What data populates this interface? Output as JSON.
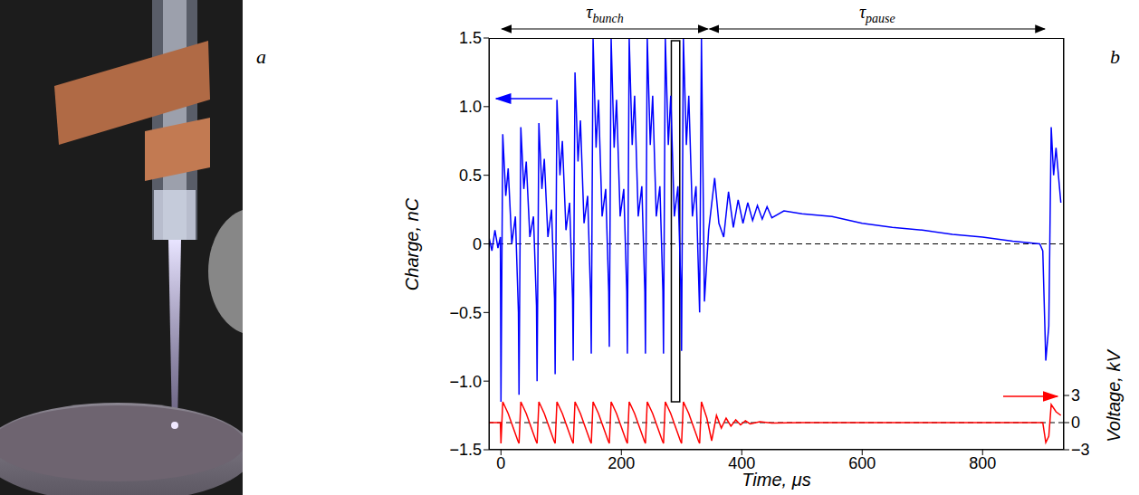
{
  "panel_labels": [
    "a",
    "b"
  ],
  "chart_data": {
    "type": "line",
    "xlabel": "Time, μs",
    "ylabel": "Charge, nC",
    "y2label": "Voltage, kV",
    "xlim": [
      -20,
      935
    ],
    "xticks": [
      0,
      200,
      400,
      600,
      800
    ],
    "ylim": [
      -1.5,
      1.5
    ],
    "yticks": [
      {
        "value": -1.5,
        "label": "−1.5"
      },
      {
        "value": -1,
        "label": "−1.0"
      },
      {
        "value": -0.5,
        "label": "−0.5"
      },
      0,
      0.5,
      {
        "value": 1,
        "label": "1.0"
      },
      1.5
    ],
    "y2lim": [
      -3,
      42.5
    ],
    "y2ticks": [
      {
        "value": -3,
        "label": "−3"
      },
      0,
      3
    ],
    "series": [
      {
        "color": "#0000ff",
        "x": [
          -20,
          -15,
          -10,
          -5,
          -1,
          0,
          3,
          8,
          12,
          18,
          24,
          29,
          30,
          33,
          38,
          42,
          48,
          54,
          59,
          60,
          63,
          68,
          72,
          78,
          84,
          89,
          90,
          93,
          98,
          102,
          108,
          114,
          119,
          120,
          123,
          128,
          132,
          138,
          144,
          149,
          150,
          153,
          158,
          162,
          168,
          174,
          179,
          180,
          183,
          188,
          192,
          198,
          204,
          209,
          210,
          213,
          218,
          222,
          228,
          234,
          239,
          240,
          243,
          248,
          252,
          258,
          264,
          269,
          270,
          273,
          278,
          282,
          288,
          294,
          299,
          300,
          303,
          308,
          312,
          318,
          324,
          329,
          330,
          333,
          338,
          345,
          355,
          362,
          370,
          378,
          386,
          394,
          402,
          410,
          418,
          426,
          434,
          442,
          450,
          470,
          500,
          550,
          600,
          650,
          700,
          750,
          800,
          850,
          895,
          900,
          905,
          910,
          914,
          918,
          922,
          930
        ],
        "values": [
          0.05,
          -0.05,
          0.1,
          -0.03,
          0.05,
          -1.15,
          0.8,
          0.35,
          0.55,
          0.0,
          0.2,
          -0.5,
          -1.1,
          0.85,
          0.4,
          0.6,
          0.05,
          0.2,
          -0.45,
          -1.0,
          0.88,
          0.4,
          0.62,
          0.05,
          0.25,
          -0.4,
          -0.95,
          1.05,
          0.5,
          0.75,
          0.1,
          0.3,
          -0.4,
          -0.85,
          1.25,
          0.6,
          0.9,
          0.15,
          0.35,
          -0.4,
          -0.8,
          1.5,
          0.7,
          1.05,
          0.2,
          0.4,
          -0.35,
          -0.75,
          1.5,
          0.7,
          1.05,
          0.2,
          0.4,
          -0.35,
          -0.8,
          1.5,
          0.72,
          1.08,
          0.2,
          0.42,
          -0.35,
          -0.8,
          1.5,
          0.72,
          1.08,
          0.2,
          0.42,
          -0.35,
          -0.8,
          1.5,
          0.72,
          1.08,
          0.2,
          0.42,
          -0.35,
          -0.78,
          1.5,
          0.72,
          1.08,
          0.2,
          0.42,
          -0.35,
          -0.5,
          1.5,
          -0.42,
          0.1,
          0.48,
          0.15,
          0.05,
          0.38,
          0.12,
          0.32,
          0.15,
          0.3,
          0.17,
          0.28,
          0.18,
          0.27,
          0.19,
          0.24,
          0.22,
          0.2,
          0.15,
          0.12,
          0.1,
          0.07,
          0.05,
          0.02,
          0.0,
          -0.05,
          -0.85,
          -0.6,
          0.85,
          0.5,
          0.7,
          0.3
        ]
      },
      {
        "color": "#ff0000",
        "axis": "y2",
        "x": [
          -20,
          -1,
          0,
          3,
          12,
          20,
          28,
          30,
          33,
          42,
          50,
          58,
          60,
          63,
          72,
          80,
          88,
          90,
          93,
          102,
          110,
          118,
          120,
          123,
          132,
          140,
          148,
          150,
          153,
          162,
          170,
          178,
          180,
          183,
          192,
          200,
          208,
          210,
          213,
          222,
          230,
          238,
          240,
          243,
          252,
          260,
          268,
          270,
          273,
          282,
          290,
          298,
          300,
          303,
          312,
          320,
          328,
          330,
          333,
          342,
          350,
          358,
          366,
          374,
          382,
          390,
          398,
          406,
          414,
          430,
          450,
          500,
          900,
          905,
          910,
          914,
          922,
          930
        ],
        "values": [
          0,
          0,
          -2.3,
          2.3,
          1.0,
          -0.5,
          -2.0,
          -2.3,
          2.3,
          1.0,
          -0.5,
          -2.0,
          -2.3,
          2.3,
          1.0,
          -0.5,
          -2.0,
          -2.3,
          2.3,
          1.0,
          -0.5,
          -2.0,
          -2.3,
          2.3,
          1.0,
          -0.5,
          -2.0,
          -2.3,
          2.3,
          1.0,
          -0.5,
          -2.0,
          -2.3,
          2.3,
          1.0,
          -0.5,
          -2.0,
          -2.3,
          2.3,
          1.0,
          -0.5,
          -2.0,
          -2.3,
          2.3,
          1.0,
          -0.5,
          -2.0,
          -2.3,
          2.3,
          1.0,
          -0.5,
          -2.0,
          -2.3,
          2.3,
          1.0,
          -0.5,
          -2.0,
          -2.3,
          2.3,
          0.5,
          -2.0,
          0.8,
          -0.6,
          0.5,
          -0.4,
          0.3,
          -0.25,
          0.2,
          -0.15,
          0.1,
          -0.05,
          0,
          0,
          -2.2,
          -1.5,
          2.0,
          1.2,
          0.8
        ]
      }
    ],
    "annotations": [
      {
        "type": "span",
        "text": "τ",
        "subscript": "bunch",
        "x": [
          0,
          345
        ]
      },
      {
        "type": "span",
        "text": "τ",
        "subscript": "pause",
        "x": [
          345,
          905
        ]
      },
      {
        "type": "box",
        "x": [
          283,
          297
        ],
        "y": [
          -1.15,
          1.48
        ]
      },
      {
        "type": "hline",
        "y": 0,
        "line_style": "dashed"
      },
      {
        "type": "hline",
        "y": 0,
        "axis": "y2",
        "line_style": "dashed"
      }
    ]
  }
}
